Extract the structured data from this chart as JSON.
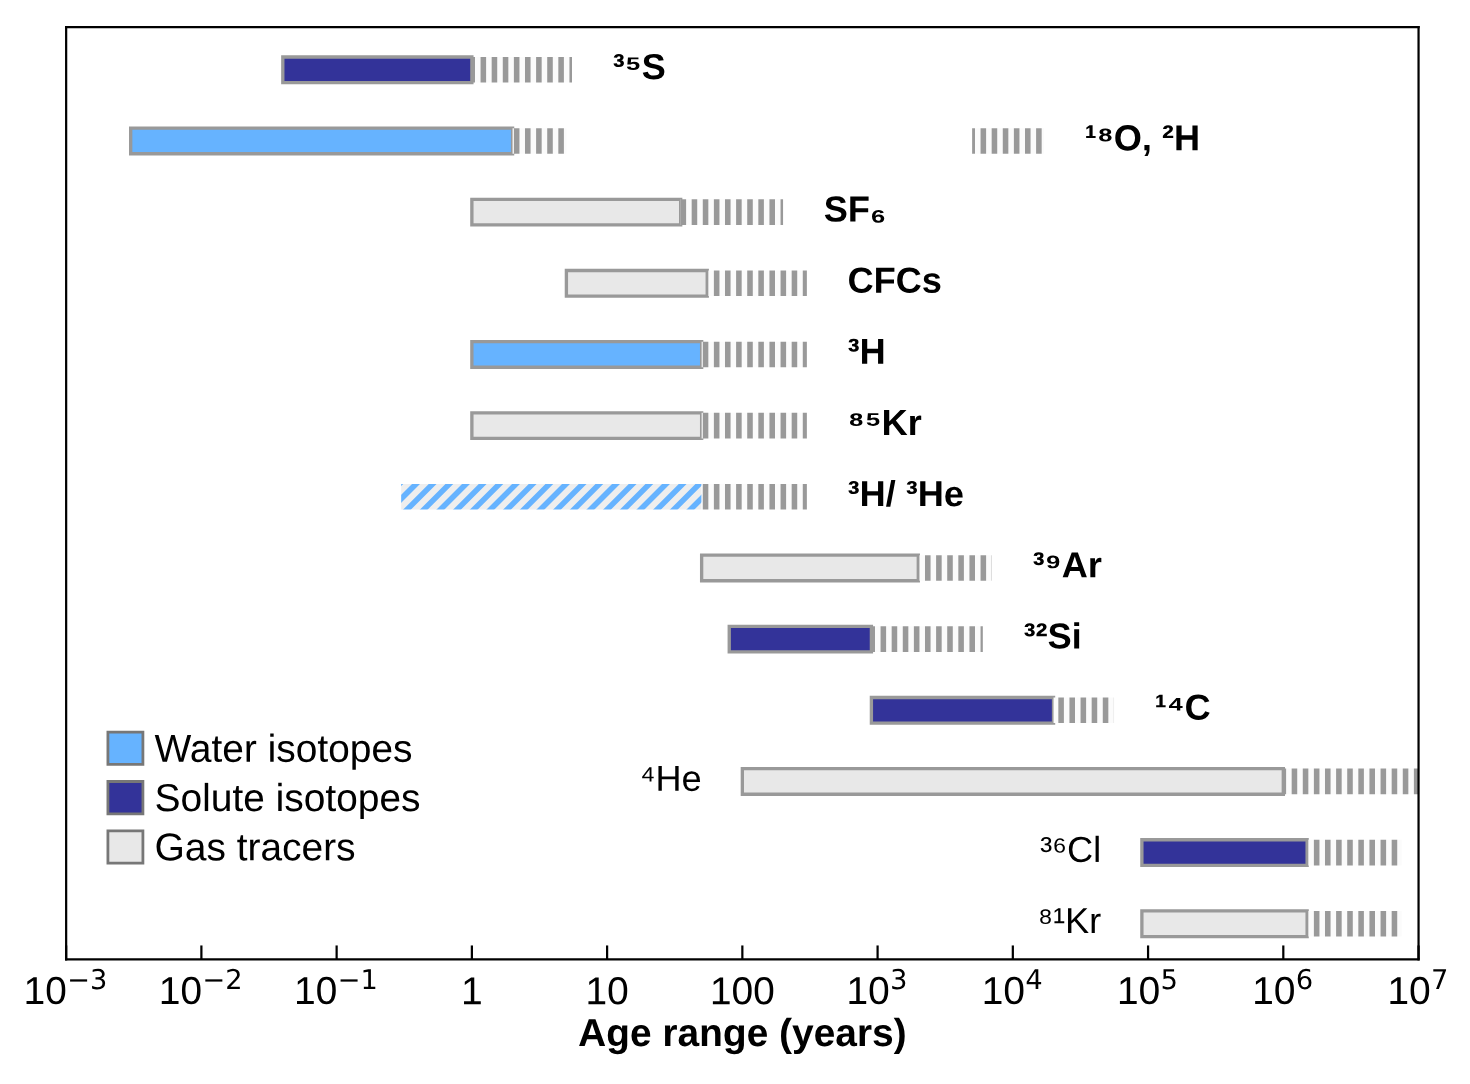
{
  "chart_data": {
    "type": "bar",
    "orientation": "horizontal",
    "xlabel": "Age range (years)",
    "log": "x",
    "categories": [
      "³⁵S",
      "¹⁸O, ²H",
      "SF₆",
      "CFCs",
      "³H",
      "⁸⁵Kr",
      "³H/ ³He",
      "³⁹Ar",
      "³²Si",
      "¹⁴C",
      "⁴He",
      "³⁶Cl",
      "⁸¹Kr"
    ],
    "series": [
      {
        "name": "Water isotopes",
        "color": "#66b3ff",
        "line_style": "solid",
        "base": [
          null,
          0.003,
          null,
          null,
          1,
          null,
          null,
          null,
          null,
          null,
          null,
          null,
          null
        ],
        "values": [
          null,
          1.997,
          null,
          null,
          49,
          null,
          null,
          null,
          null,
          null,
          null,
          null,
          null
        ]
      },
      {
        "name": "Solute isotopes",
        "color": "#333399",
        "line_style": "solid",
        "base": [
          0.04,
          null,
          null,
          null,
          null,
          null,
          null,
          null,
          80,
          900,
          null,
          90000,
          null
        ],
        "values": [
          0.96,
          null,
          null,
          null,
          null,
          null,
          null,
          null,
          820,
          19100,
          null,
          1410000,
          null
        ]
      },
      {
        "name": "Gas tracers",
        "color": "#e8e8e8",
        "line_style": "solid",
        "base": [
          null,
          null,
          1,
          5,
          null,
          1,
          null,
          50,
          null,
          null,
          100,
          null,
          90000
        ],
        "values": [
          null,
          null,
          34,
          50,
          null,
          49,
          null,
          1950,
          null,
          null,
          999900,
          null,
          1410000
        ]
      },
      {
        "color": "#66b3ff",
        "line_style": "dashed",
        "base": [
          null,
          null,
          null,
          null,
          null,
          null,
          0.3,
          null,
          null,
          null,
          null,
          null,
          null
        ],
        "values": [
          null,
          null,
          null,
          null,
          null,
          null,
          49.7,
          null,
          null,
          null,
          null,
          null,
          null
        ]
      },
      {
        "color": "#999999",
        "line_style": "dotted",
        "base": [
          1,
          2,
          35,
          55,
          50,
          50,
          50,
          2000,
          900,
          20000,
          1000000,
          1500000,
          1500000
        ],
        "values": [
          4.5,
          3,
          165,
          245,
          250,
          250,
          250,
          5000,
          5100,
          36000,
          9000000,
          6000000,
          6000000
        ]
      },
      {
        "color": "#999999",
        "line_style": "dotted",
        "base": [
          null,
          5000,
          null,
          null,
          null,
          null,
          null,
          null,
          null,
          null,
          null,
          null,
          null
        ],
        "values": [
          null,
          12000,
          null,
          null,
          null,
          null,
          null,
          null,
          null,
          null,
          null,
          null,
          null
        ]
      }
    ],
    "xlim": [
      0.001,
      10000000
    ],
    "xticks": [
      {
        "value": 0.001,
        "label": "10$^{−3}$"
      },
      {
        "value": 0.01,
        "label": "10$^{−2}$"
      },
      {
        "value": 0.1,
        "label": "10$^{−1}$"
      },
      1,
      10,
      100,
      {
        "value": 1000,
        "label": "10$^{3}$"
      },
      {
        "value": 10000,
        "label": "10$^{4}$"
      },
      {
        "value": 100000,
        "label": "10$^{5}$"
      },
      {
        "value": 1000000,
        "label": "10$^{6}$"
      },
      {
        "value": 10000000,
        "label": "10$^{7}$"
      }
    ],
    "tick_labels": "x",
    "grid": false,
    "legend": "bottom left"
  }
}
